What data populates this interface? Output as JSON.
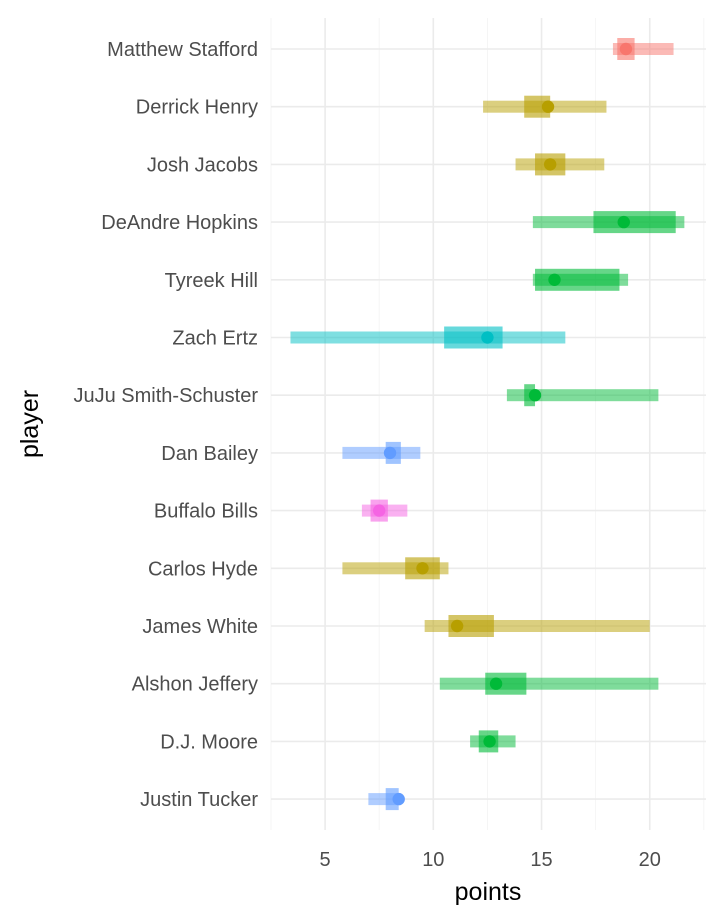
{
  "chart_data": {
    "type": "range-dot",
    "xlabel": "points",
    "ylabel": "player",
    "xlim": [
      2.5,
      22.6
    ],
    "x_ticks": [
      5,
      10,
      15,
      20
    ],
    "grid": true,
    "legend": "none",
    "players": [
      {
        "name": "Matthew Stafford",
        "point": 18.9,
        "wide": [
          18.3,
          21.1
        ],
        "narrow": [
          18.5,
          19.3
        ],
        "color": "#F8766D"
      },
      {
        "name": "Derrick Henry",
        "point": 15.3,
        "wide": [
          12.3,
          18.0
        ],
        "narrow": [
          14.2,
          15.4
        ],
        "color": "#B79F00"
      },
      {
        "name": "Josh Jacobs",
        "point": 15.4,
        "wide": [
          13.8,
          17.9
        ],
        "narrow": [
          14.7,
          16.1
        ],
        "color": "#B79F00"
      },
      {
        "name": "DeAndre Hopkins",
        "point": 18.8,
        "wide": [
          14.6,
          21.6
        ],
        "narrow": [
          17.4,
          21.2
        ],
        "color": "#00BA38"
      },
      {
        "name": "Tyreek Hill",
        "point": 15.6,
        "wide": [
          14.6,
          19.0
        ],
        "narrow": [
          14.7,
          18.6
        ],
        "color": "#00BA38"
      },
      {
        "name": "Zach Ertz",
        "point": 12.5,
        "wide": [
          3.4,
          16.1
        ],
        "narrow": [
          10.5,
          13.2
        ],
        "color": "#00BFC4"
      },
      {
        "name": "JuJu Smith-Schuster",
        "point": 14.7,
        "wide": [
          13.4,
          20.4
        ],
        "narrow": [
          14.2,
          14.7
        ],
        "color": "#00BA38"
      },
      {
        "name": "Dan Bailey",
        "point": 8.0,
        "wide": [
          5.8,
          9.4
        ],
        "narrow": [
          7.8,
          8.5
        ],
        "color": "#619CFF"
      },
      {
        "name": "Buffalo Bills",
        "point": 7.5,
        "wide": [
          6.7,
          8.8
        ],
        "narrow": [
          7.1,
          7.9
        ],
        "color": "#F564E3"
      },
      {
        "name": "Carlos Hyde",
        "point": 9.5,
        "wide": [
          5.8,
          10.7
        ],
        "narrow": [
          8.7,
          10.3
        ],
        "color": "#B79F00"
      },
      {
        "name": "James White",
        "point": 11.1,
        "wide": [
          9.6,
          20.0
        ],
        "narrow": [
          10.7,
          12.8
        ],
        "color": "#B79F00"
      },
      {
        "name": "Alshon Jeffery",
        "point": 12.9,
        "wide": [
          10.3,
          20.4
        ],
        "narrow": [
          12.4,
          14.3
        ],
        "color": "#00BA38"
      },
      {
        "name": "D.J. Moore",
        "point": 12.6,
        "wide": [
          11.7,
          13.8
        ],
        "narrow": [
          12.1,
          13.0
        ],
        "color": "#00BA38"
      },
      {
        "name": "Justin Tucker",
        "point": 8.4,
        "wide": [
          7.0,
          8.5
        ],
        "narrow": [
          7.8,
          8.4
        ],
        "color": "#619CFF"
      }
    ]
  }
}
